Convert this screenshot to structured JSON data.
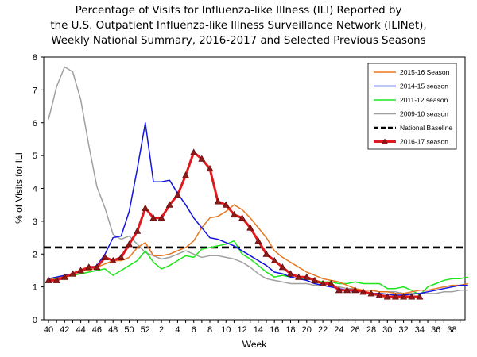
{
  "title_lines": [
    "Percentage of Visits for Influenza-like Illness (ILI) Reported by",
    "the U.S. Outpatient Influenza-like Illness Surveillance Network (ILINet),",
    "Weekly National Summary, 2016-2017 and Selected Previous Seasons"
  ],
  "chart_data": {
    "type": "line",
    "title": "Percentage of Visits for Influenza-like Illness (ILI) Reported by the U.S. Outpatient Influenza-like Illness Surveillance Network (ILINet), Weekly National Summary, 2016-2017 and Selected Previous Seasons",
    "xlabel": "Week",
    "ylabel": "% of Visits for ILI",
    "ylim": [
      0,
      8
    ],
    "yticks": [
      0,
      1,
      2,
      3,
      4,
      5,
      6,
      7,
      8
    ],
    "x_tick_labels": [
      "40",
      "42",
      "44",
      "46",
      "48",
      "50",
      "52",
      "2",
      "4",
      "6",
      "8",
      "10",
      "12",
      "14",
      "16",
      "18",
      "20",
      "22",
      "24",
      "26",
      "28",
      "30",
      "32",
      "34",
      "36",
      "38"
    ],
    "grid": false,
    "legend_position": "top-right",
    "baseline": {
      "name": "National Baseline",
      "value": 2.2,
      "color": "#000000"
    },
    "series": [
      {
        "name": "2015-16 Season",
        "color": "#E87722",
        "values": [
          1.2,
          1.3,
          1.3,
          1.4,
          1.5,
          1.5,
          1.6,
          1.7,
          1.8,
          1.8,
          1.9,
          2.2,
          2.35,
          1.95,
          1.95,
          2.0,
          2.1,
          2.2,
          2.4,
          2.8,
          3.1,
          3.15,
          3.3,
          3.5,
          3.35,
          3.1,
          2.8,
          2.5,
          2.1,
          1.9,
          1.75,
          1.6,
          1.45,
          1.35,
          1.25,
          1.2,
          1.15,
          1.05,
          0.95,
          0.9,
          0.9,
          0.85,
          0.85,
          0.8,
          0.8,
          0.85,
          0.9,
          0.9,
          0.95,
          1.0,
          1.05,
          1.05,
          1.1
        ]
      },
      {
        "name": "2014-15 season",
        "color": "#1414E0",
        "values": [
          1.25,
          1.3,
          1.35,
          1.4,
          1.5,
          1.55,
          1.65,
          2.0,
          2.5,
          2.55,
          3.3,
          4.6,
          6.0,
          4.2,
          4.2,
          4.25,
          3.85,
          3.5,
          3.1,
          2.8,
          2.5,
          2.45,
          2.35,
          2.25,
          2.1,
          1.95,
          1.8,
          1.65,
          1.45,
          1.4,
          1.3,
          1.25,
          1.2,
          1.1,
          1.05,
          1.0,
          0.95,
          0.9,
          0.85,
          0.85,
          0.8,
          0.8,
          0.78,
          0.75,
          0.75,
          0.78,
          0.8,
          0.85,
          0.9,
          0.95,
          1.0,
          1.05,
          1.05
        ]
      },
      {
        "name": "2011-12 season",
        "color": "#1EE61E",
        "values": [
          1.2,
          1.25,
          1.3,
          1.35,
          1.4,
          1.45,
          1.5,
          1.55,
          1.35,
          1.5,
          1.65,
          1.8,
          2.1,
          1.75,
          1.55,
          1.65,
          1.8,
          1.95,
          1.9,
          2.15,
          2.2,
          2.25,
          2.3,
          2.4,
          2.0,
          1.85,
          1.65,
          1.45,
          1.3,
          1.35,
          1.3,
          1.25,
          1.25,
          1.2,
          1.15,
          1.15,
          1.1,
          1.1,
          1.15,
          1.1,
          1.1,
          1.1,
          0.95,
          0.95,
          1.0,
          0.9,
          0.75,
          1.0,
          1.1,
          1.2,
          1.25,
          1.25,
          1.3
        ]
      },
      {
        "name": "2009-10 season",
        "color": "#A0A0A0",
        "values": [
          6.1,
          7.1,
          7.7,
          7.55,
          6.7,
          5.3,
          4.05,
          3.4,
          2.6,
          2.45,
          2.55,
          2.3,
          2.05,
          1.95,
          1.85,
          1.9,
          2.0,
          2.1,
          2.0,
          1.9,
          1.95,
          1.95,
          1.9,
          1.85,
          1.75,
          1.6,
          1.4,
          1.25,
          1.2,
          1.15,
          1.1,
          1.1,
          1.1,
          1.05,
          1.05,
          1.0,
          1.0,
          0.95,
          0.95,
          0.9,
          0.9,
          0.85,
          0.85,
          0.85,
          0.8,
          0.8,
          0.8,
          0.8,
          0.8,
          0.85,
          0.85,
          0.9,
          0.9
        ]
      },
      {
        "name": "2016-17 season",
        "color": "#E0191E",
        "values": [
          1.2,
          1.2,
          1.3,
          1.4,
          1.5,
          1.6,
          1.6,
          1.9,
          1.8,
          1.9,
          2.3,
          2.7,
          3.4,
          3.1,
          3.1,
          3.5,
          3.8,
          4.4,
          5.1,
          4.9,
          4.6,
          3.6,
          3.5,
          3.2,
          3.1,
          2.8,
          2.4,
          2.0,
          1.8,
          1.6,
          1.4,
          1.3,
          1.3,
          1.2,
          1.1,
          1.1,
          0.9,
          0.9,
          0.9,
          0.85,
          0.8,
          0.75,
          0.7,
          0.7,
          0.7,
          0.7,
          0.7
        ]
      }
    ]
  }
}
